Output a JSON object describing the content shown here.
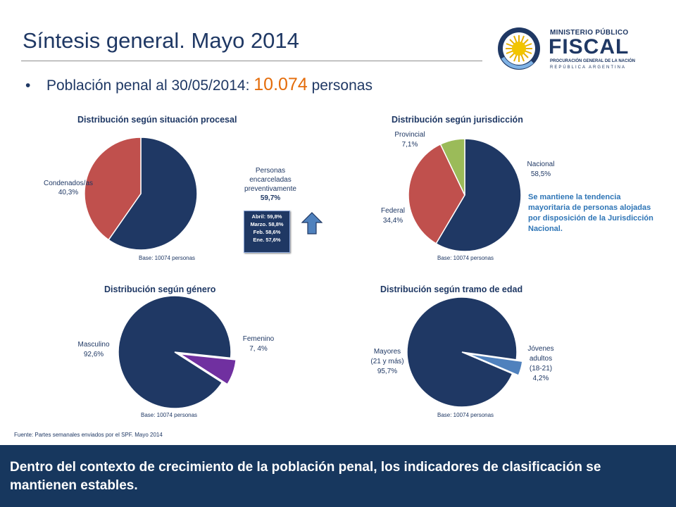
{
  "header": {
    "title": "Síntesis general. Mayo 2014",
    "bullet_prefix": "Población penal al 30/05/2014",
    "bullet_colon": ":",
    "bullet_number": "10.074",
    "bullet_suffix": "personas",
    "bullet_glyph": "•"
  },
  "logo": {
    "line1": "MINISTERIO PÚBLICO",
    "line2": "FISCAL",
    "line3": "PROCURACIÓN GENERAL DE LA NACIÓN",
    "line4": "REPÚBLICA ARGENTINA"
  },
  "colors": {
    "navy": "#1f3864",
    "red": "#c0504d",
    "green": "#9bbb59",
    "purple": "#7030a0",
    "blue": "#4f81bd",
    "orange": "#e46c0a",
    "footer": "#17375e"
  },
  "chart_data": [
    {
      "type": "pie",
      "title": "Distribución según situación procesal",
      "slices": [
        {
          "label": "Personas encarceladas preventivamente",
          "value": 59.7,
          "value_label": "59,7%"
        },
        {
          "label": "Condenados/as",
          "value": 40.3,
          "value_label": "40,3%"
        }
      ],
      "base": "Base: 10074 personas",
      "trend_box": [
        "Abril: 59,8%",
        "Marzo. 58,8%",
        "Feb. 58,6%",
        "Ene. 57,6%"
      ]
    },
    {
      "type": "pie",
      "title": "Distribución según jurisdicción",
      "slices": [
        {
          "label": "Nacional",
          "value": 58.5,
          "value_label": "58,5%"
        },
        {
          "label": "Federal",
          "value": 34.4,
          "value_label": "34,4%"
        },
        {
          "label": "Provincial",
          "value": 7.1,
          "value_label": "7,1%"
        }
      ],
      "base": "Base: 10074 personas",
      "note": "Se mantiene la tendencia mayoritaria de personas alojadas por disposición de la Jurisdicción Nacional."
    },
    {
      "type": "pie",
      "title": "Distribución según género",
      "slices": [
        {
          "label": "Masculino",
          "value": 92.6,
          "value_label": "92,6%"
        },
        {
          "label": "Femenino",
          "value": 7.4,
          "value_label": "7, 4%"
        }
      ],
      "base": "Base: 10074 personas"
    },
    {
      "type": "pie",
      "title": "Distribución según tramo de edad",
      "slices": [
        {
          "label": "Mayores (21 y más)",
          "label_lines": [
            "Mayores",
            "(21 y más)"
          ],
          "value": 95.7,
          "value_label": "95,7%"
        },
        {
          "label": "Jóvenes adultos (18-21)",
          "label_lines": [
            "Jóvenes",
            "adultos",
            "(18-21)"
          ],
          "value": 4.2,
          "value_label": "4,2%"
        }
      ],
      "base": "Base: 10074 personas"
    }
  ],
  "source": "Fuente: Partes semanales enviados por el SPF. Mayo 2014",
  "footer": "Dentro del contexto de crecimiento de la población penal, los indicadores de clasificación se mantienen estables."
}
